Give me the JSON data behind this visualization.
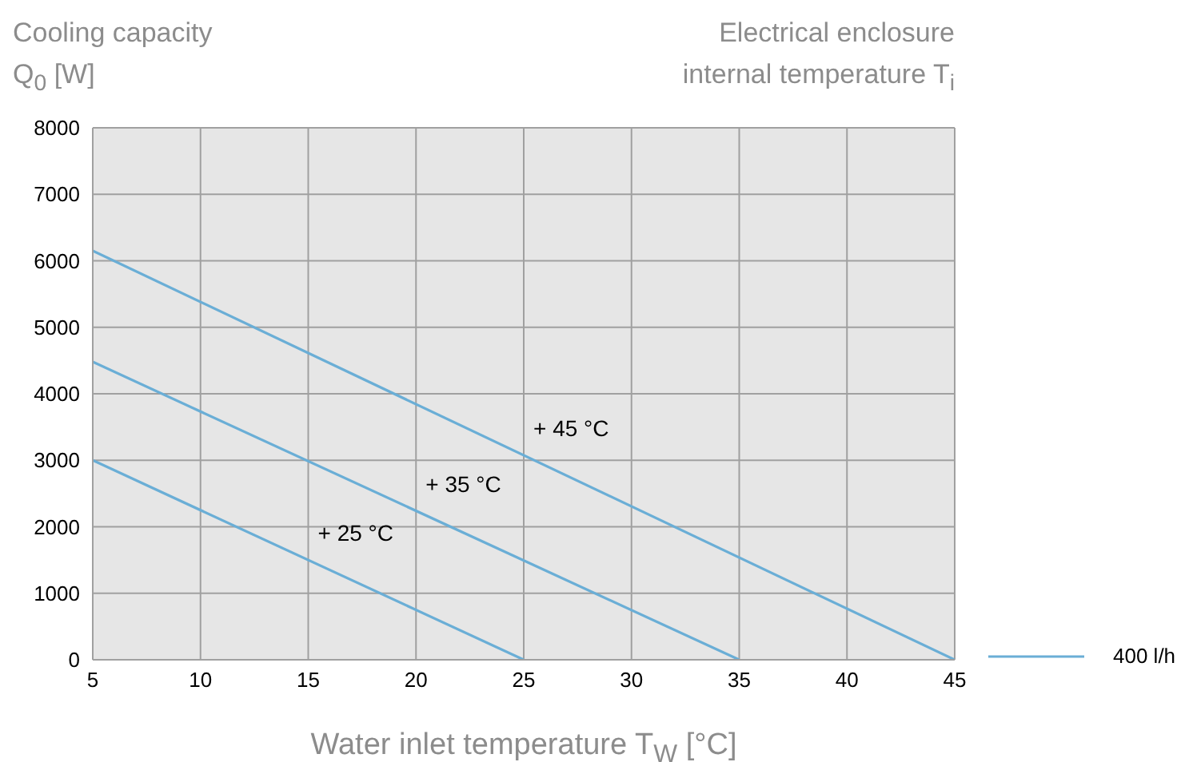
{
  "chart_data": {
    "type": "line",
    "ylabel": "Cooling capacity Q$_{0}$ [W]",
    "xlabel": "Water inlet temperature T$_{W}$ [°C]",
    "annotations": [
      "Electrical enclosure internal temperature T$_{i}$",
      {
        "text": "+ 45 °C",
        "x": 25,
        "y": 3075
      },
      {
        "text": "+ 35 °C",
        "x": 20,
        "y": 2240
      },
      {
        "text": "+ 25 °C",
        "x": 15,
        "y": 1500
      }
    ],
    "series": [
      {
        "name": "400 l/h",
        "color": "#6aaed6",
        "x": [
          5,
          45
        ],
        "values": [
          6150,
          0
        ]
      },
      {
        "color": "#6aaed6",
        "x": [
          5,
          35
        ],
        "values": [
          4480,
          0
        ]
      },
      {
        "color": "#6aaed6",
        "x": [
          5,
          25
        ],
        "values": [
          3000,
          0
        ]
      }
    ],
    "xlim": [
      5,
      45
    ],
    "xticks": [
      5,
      10,
      15,
      20,
      25,
      30,
      35,
      40,
      45
    ],
    "ylim": [
      0,
      8000
    ],
    "yticks": [
      0,
      1000,
      2000,
      3000,
      4000,
      5000,
      6000,
      7000,
      8000
    ],
    "grid": true,
    "legend": "bottom right",
    "marker": "none",
    "line_style": "solid"
  }
}
